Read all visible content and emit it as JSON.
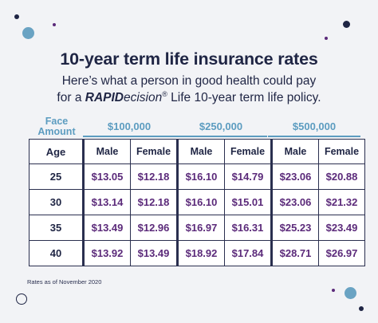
{
  "title": "10-year term life insurance rates",
  "subtitle_line1": "Here’s what a person in good health could pay",
  "subtitle_line2_pre": "for a ",
  "subtitle_brand_bold": "RAPID",
  "subtitle_brand_rest": "ecision",
  "subtitle_reg": "®",
  "subtitle_line2_post": " Life 10-year term life policy.",
  "face_amount_label": "Face Amount",
  "amounts": [
    "$100,000",
    "$250,000",
    "$500,000"
  ],
  "table": {
    "age_header": "Age",
    "sub_headers": [
      "Male",
      "Female",
      "Male",
      "Female",
      "Male",
      "Female"
    ],
    "rows": [
      {
        "age": "25",
        "values": [
          "$13.05",
          "$12.18",
          "$16.10",
          "$14.79",
          "$23.06",
          "$20.88"
        ]
      },
      {
        "age": "30",
        "values": [
          "$13.14",
          "$12.18",
          "$16.10",
          "$15.01",
          "$23.06",
          "$21.32"
        ]
      },
      {
        "age": "35",
        "values": [
          "$13.49",
          "$12.96",
          "$16.97",
          "$16.31",
          "$25.23",
          "$23.49"
        ]
      },
      {
        "age": "40",
        "values": [
          "$13.92",
          "$13.49",
          "$18.92",
          "$17.84",
          "$28.71",
          "$26.97"
        ]
      }
    ]
  },
  "footnote": "Rates as of November 2020",
  "colors": {
    "navy": "#1f2544",
    "blue": "#5c9cc0",
    "purple": "#5b2a7a",
    "teal_dot": "#6aa3c3"
  }
}
